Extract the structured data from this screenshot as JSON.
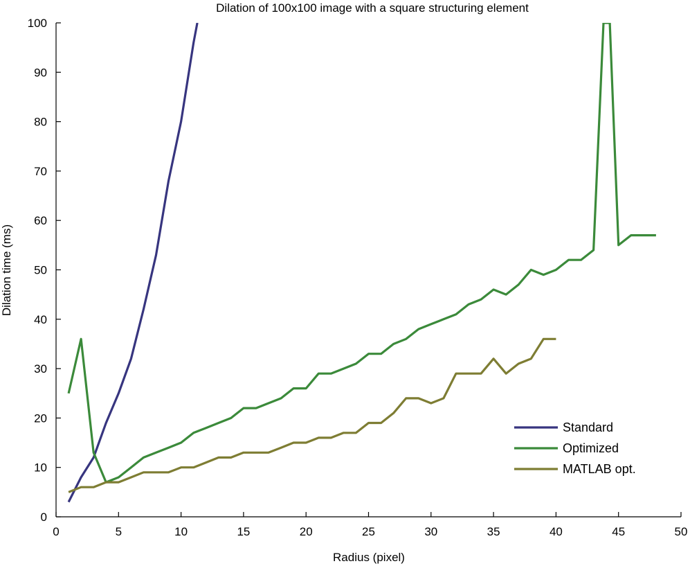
{
  "chart_data": {
    "type": "line",
    "title": "Dilation of 100x100 image with a square structuring element",
    "xlabel": "Radius (pixel)",
    "ylabel": "Dilation time (ms)",
    "xlim": [
      0,
      50
    ],
    "ylim": [
      0,
      100
    ],
    "xticks": [
      "0",
      "5",
      "10",
      "15",
      "20",
      "25",
      "30",
      "35",
      "40",
      "45",
      "50"
    ],
    "yticks": [
      "0",
      "10",
      "20",
      "30",
      "40",
      "50",
      "60",
      "70",
      "80",
      "90",
      "100"
    ],
    "grid": false,
    "legend_position": "bottom-right",
    "series": [
      {
        "name": "Standard",
        "color": "#37357f",
        "x": [
          1,
          2,
          3,
          4,
          5,
          6,
          7,
          8,
          9,
          10,
          11,
          11.3
        ],
        "y": [
          3,
          8,
          12,
          19,
          25,
          32,
          42,
          53,
          68,
          80,
          96,
          100
        ]
      },
      {
        "name": "Optimized",
        "color": "#3b8a3a",
        "x": [
          1,
          2,
          3,
          4,
          5,
          6,
          7,
          8,
          9,
          10,
          11,
          12,
          13,
          14,
          15,
          16,
          17,
          18,
          19,
          20,
          21,
          22,
          23,
          24,
          25,
          26,
          27,
          28,
          29,
          30,
          31,
          32,
          33,
          34,
          35,
          36,
          37,
          38,
          39,
          40,
          41,
          42,
          43,
          43.8,
          44.3,
          45,
          46,
          47,
          48
        ],
        "y": [
          25,
          36,
          13,
          7,
          8,
          10,
          12,
          13,
          14,
          15,
          17,
          18,
          19,
          20,
          22,
          22,
          23,
          24,
          26,
          26,
          29,
          29,
          30,
          31,
          33,
          33,
          35,
          36,
          38,
          39,
          40,
          41,
          43,
          44,
          46,
          45,
          47,
          50,
          49,
          50,
          52,
          52,
          54,
          100,
          100,
          55,
          57,
          57,
          57
        ]
      },
      {
        "name": "MATLAB opt.",
        "color": "#7e7d33",
        "x": [
          1,
          2,
          3,
          4,
          5,
          6,
          7,
          8,
          9,
          10,
          11,
          12,
          13,
          14,
          15,
          16,
          17,
          18,
          19,
          20,
          21,
          22,
          23,
          24,
          25,
          26,
          27,
          28,
          29,
          30,
          31,
          32,
          33,
          34,
          35,
          36,
          37,
          38,
          39,
          40
        ],
        "y": [
          5,
          6,
          6,
          7,
          7,
          8,
          9,
          9,
          9,
          10,
          10,
          11,
          12,
          12,
          13,
          13,
          13,
          14,
          15,
          15,
          16,
          16,
          17,
          17,
          19,
          19,
          21,
          24,
          24,
          23,
          24,
          29,
          29,
          29,
          32,
          29,
          31,
          32,
          36,
          36
        ]
      }
    ]
  }
}
